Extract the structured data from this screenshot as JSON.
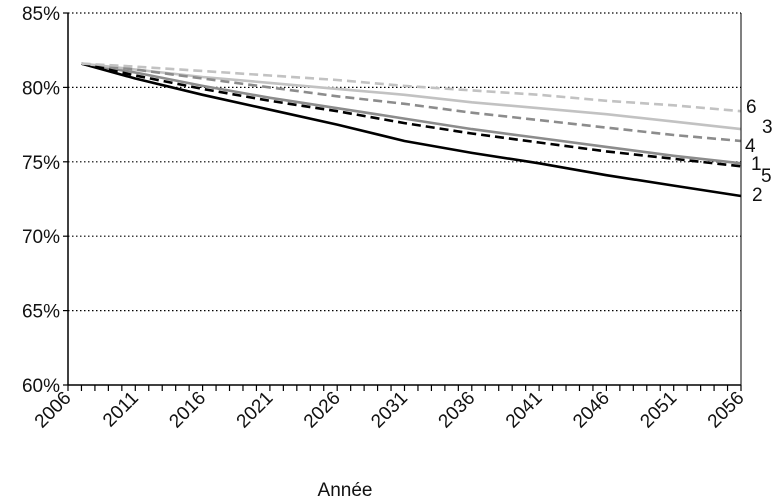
{
  "chart_data": {
    "type": "line",
    "xlabel": "Année",
    "ylabel": "",
    "x_tick_labels": [
      "2006",
      "2011",
      "2016",
      "2021",
      "2026",
      "2031",
      "2036",
      "2041",
      "2046",
      "2051",
      "2056"
    ],
    "y_tick_labels": [
      "60%",
      "65%",
      "70%",
      "75%",
      "80%",
      "85%"
    ],
    "xlim": [
      2006,
      2056
    ],
    "ylim": [
      60,
      85
    ],
    "y_unit": "%",
    "grid": "horizontal dotted",
    "x": [
      2007,
      2011,
      2016,
      2021,
      2026,
      2031,
      2036,
      2041,
      2046,
      2051,
      2056
    ],
    "series": [
      {
        "name": "1",
        "color": "#8c8c8c",
        "dash": "solid",
        "values": [
          81.6,
          81.0,
          80.1,
          79.3,
          78.6,
          77.9,
          77.2,
          76.6,
          76.0,
          75.4,
          74.9
        ]
      },
      {
        "name": "2",
        "color": "#000000",
        "dash": "solid",
        "values": [
          81.6,
          80.6,
          79.5,
          78.5,
          77.5,
          76.4,
          75.6,
          74.9,
          74.1,
          73.4,
          72.7
        ]
      },
      {
        "name": "3",
        "color": "#c2c2c2",
        "dash": "solid",
        "values": [
          81.6,
          81.2,
          80.7,
          80.3,
          79.9,
          79.5,
          79.0,
          78.6,
          78.2,
          77.7,
          77.2
        ]
      },
      {
        "name": "4",
        "color": "#8c8c8c",
        "dash": "dashed",
        "values": [
          81.6,
          81.2,
          80.6,
          80.0,
          79.4,
          78.9,
          78.3,
          77.8,
          77.3,
          76.8,
          76.4
        ]
      },
      {
        "name": "5",
        "color": "#000000",
        "dash": "dashed",
        "values": [
          81.6,
          80.8,
          79.9,
          79.1,
          78.4,
          77.6,
          76.9,
          76.3,
          75.7,
          75.2,
          74.7
        ]
      },
      {
        "name": "6",
        "color": "#c2c2c2",
        "dash": "dashed",
        "values": [
          81.6,
          81.4,
          81.1,
          80.8,
          80.5,
          80.1,
          79.8,
          79.5,
          79.1,
          78.8,
          78.4
        ]
      }
    ]
  }
}
